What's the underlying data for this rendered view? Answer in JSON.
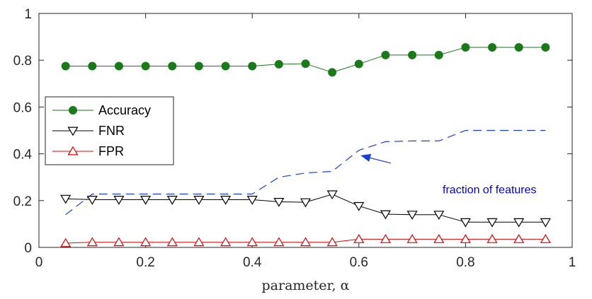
{
  "chart_data": {
    "type": "line",
    "xlabel": "parameter, α",
    "ylabel": "",
    "xlim": [
      0,
      1
    ],
    "ylim": [
      0,
      1
    ],
    "xticks": [
      "0",
      "0.2",
      "0.4",
      "0.6",
      "0.8",
      "1"
    ],
    "yticks": [
      "0",
      "0.2",
      "0.4",
      "0.6",
      "0.8",
      "1"
    ],
    "grid": false,
    "legend_position": "middle-left",
    "x": [
      0.05,
      0.1,
      0.15,
      0.2,
      0.25,
      0.3,
      0.35,
      0.4,
      0.45,
      0.5,
      0.55,
      0.6,
      0.65,
      0.7,
      0.75,
      0.8,
      0.85,
      0.9,
      0.95
    ],
    "series": [
      {
        "name": "Accuracy",
        "color": "#1a7a1a",
        "marker": "circle",
        "values": [
          0.775,
          0.775,
          0.775,
          0.775,
          0.775,
          0.775,
          0.775,
          0.775,
          0.783,
          0.785,
          0.748,
          0.784,
          0.822,
          0.822,
          0.822,
          0.855,
          0.855,
          0.855,
          0.855
        ]
      },
      {
        "name": "FNR",
        "color": "#000000",
        "marker": "triangle-down",
        "values": [
          0.208,
          0.204,
          0.204,
          0.204,
          0.204,
          0.204,
          0.204,
          0.204,
          0.195,
          0.193,
          0.227,
          0.177,
          0.142,
          0.14,
          0.14,
          0.108,
          0.108,
          0.108,
          0.108
        ]
      },
      {
        "name": "FPR",
        "color": "#e00000",
        "marker": "triangle-up",
        "values": [
          0.018,
          0.022,
          0.022,
          0.022,
          0.022,
          0.022,
          0.022,
          0.022,
          0.022,
          0.022,
          0.022,
          0.035,
          0.035,
          0.035,
          0.035,
          0.035,
          0.035,
          0.035,
          0.035
        ]
      }
    ],
    "dashed_series": {
      "label": "fraction of features",
      "color": "#1a3fd6",
      "x": [
        0.05,
        0.1,
        0.15,
        0.2,
        0.25,
        0.3,
        0.35,
        0.4,
        0.45,
        0.5,
        0.55,
        0.6,
        0.65,
        0.7,
        0.75,
        0.8,
        0.85,
        0.9,
        0.95
      ],
      "values": [
        0.14,
        0.228,
        0.228,
        0.228,
        0.228,
        0.228,
        0.228,
        0.228,
        0.3,
        0.318,
        0.325,
        0.415,
        0.452,
        0.455,
        0.455,
        0.5,
        0.5,
        0.5,
        0.5
      ]
    },
    "annotation": {
      "text": "fraction of features",
      "arrow_tail": [
        0.66,
        0.36
      ],
      "arrow_head": [
        0.605,
        0.392
      ],
      "text_anchor": [
        0.845,
        0.25
      ]
    }
  }
}
